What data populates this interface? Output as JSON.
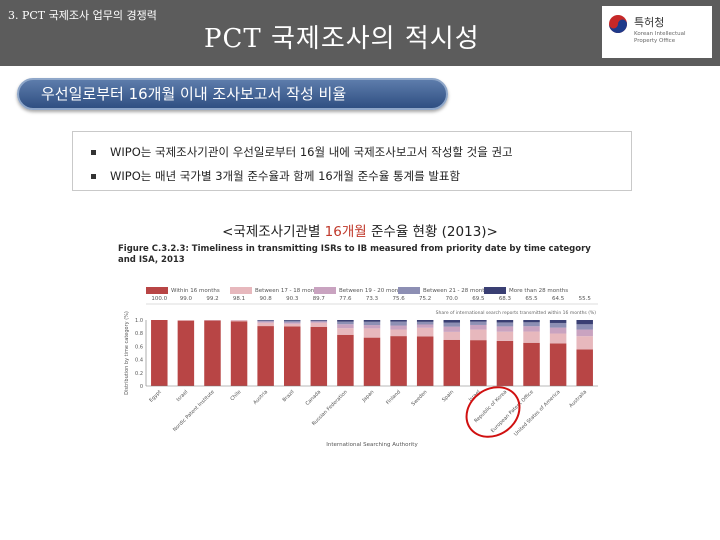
{
  "header": {
    "section_label": "3. PCT 국제조사 업무의 경쟁력",
    "title": "PCT 국제조사의 적시성",
    "logo_name": "특허청",
    "logo_sub": "Korean Intellectual Property Office",
    "background": "#5c5c5c"
  },
  "subtitle_pill": "우선일로부터 16개월 이내 조사보고서 작성 비율",
  "bullets": [
    "WIPO는 국제조사기관이 우선일로부터 16월 내에 국제조사보고서 작성할 것을 권고",
    "WIPO는 매년 국가별 3개월 준수율과 함께 16개월 준수율 통계를 발표함"
  ],
  "caption": {
    "before": "<국제조사기관별 ",
    "highlight": "16개월",
    "after": " 준수율 현황 (2013)>"
  },
  "chart_data": {
    "type": "bar",
    "title": "Figure C.3.2.3: Timeliness in transmitting ISRs to IB measured from priority date by time category and ISA, 2013",
    "xlabel": "International Searching Authority",
    "ylabel": "Distribution by time category (%)",
    "ylim": [
      0,
      100
    ],
    "legend": [
      "Within 16 months",
      "Between 17 - 18 months",
      "Between 19 - 20 months",
      "Between 21 - 28 months",
      "More than 28 months"
    ],
    "legend_colors": [
      "#b84545",
      "#e7b8bd",
      "#c9a3c0",
      "#8d8fb4",
      "#3a3f73"
    ],
    "share_label": "Share of international search reports transmitted within 16 months (%)",
    "categories": [
      "Egypt",
      "Israel",
      "Nordic Patent Institute",
      "Chile",
      "Austria",
      "Brazil",
      "Canada",
      "Russian Federation",
      "Japan",
      "Finland",
      "Sweden",
      "Spain",
      "Israel",
      "Republic of Korea",
      "European Patent Office",
      "United States of America",
      "Australia"
    ],
    "shares_printed": [
      "100.0",
      "99.0",
      "99.2",
      "98.1",
      "90.8",
      "90.3",
      "89.7",
      "77.6",
      "73.3",
      "75.6",
      "75.2",
      "70.0",
      "69.5",
      "68.3",
      "65.5",
      "64.5",
      "55.5"
    ],
    "series": [
      {
        "name": "Within 16 months",
        "values": [
          100,
          99,
          99.2,
          98.1,
          90.8,
          90.3,
          89.7,
          77.6,
          73.3,
          75.6,
          75.2,
          70,
          69.5,
          68.3,
          65.5,
          64.5,
          55.5
        ]
      },
      {
        "name": "Between 17 - 18 months",
        "values": [
          0,
          1,
          0.5,
          1.5,
          5,
          4,
          6,
          10,
          14,
          10,
          13,
          12,
          16,
          14,
          17,
          15,
          20
        ]
      },
      {
        "name": "Between 19 - 20 months",
        "values": [
          0,
          0,
          0.3,
          0.4,
          2,
          2,
          2,
          6,
          5,
          6,
          5,
          8,
          7,
          8,
          8,
          9,
          10
        ]
      },
      {
        "name": "Between 21 - 28 months",
        "values": [
          0,
          0,
          0,
          0,
          1.5,
          2.5,
          1.5,
          4,
          5,
          6,
          4,
          6,
          5,
          6,
          6,
          7,
          8
        ]
      },
      {
        "name": "More than 28 months",
        "values": [
          0,
          0,
          0,
          0,
          0.7,
          1.2,
          0.8,
          2.4,
          2.7,
          2.4,
          2.8,
          4,
          2.5,
          3.7,
          3.5,
          4.5,
          6.5
        ]
      }
    ],
    "y_ticks": [
      "0",
      "0.2",
      "0.4",
      "0.6",
      "0.8",
      "1.0"
    ],
    "grid": false
  }
}
